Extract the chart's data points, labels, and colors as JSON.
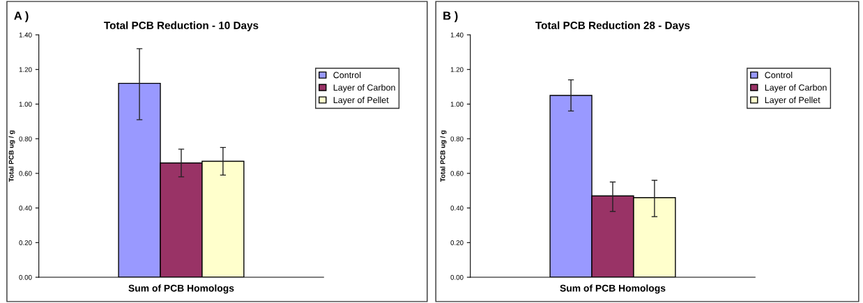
{
  "chart_data": [
    {
      "type": "bar",
      "title": "Total PCB Reduction - 10 Days",
      "xlabel": "Sum of PCB Homologs",
      "ylabel": "Total PCB ug / g",
      "annotations": [
        "A )"
      ],
      "categories": [
        null
      ],
      "series": [
        {
          "name": "Control",
          "color": "#9999ff",
          "values": [
            1.12
          ],
          "errors": [
            [
              0.91,
              1.32
            ]
          ]
        },
        {
          "name": "Layer of Carbon",
          "color": "#993366",
          "values": [
            0.66
          ],
          "errors": [
            [
              0.58,
              0.74
            ]
          ]
        },
        {
          "name": "Layer of Pellet",
          "color": "#ffffcc",
          "values": [
            0.67
          ],
          "errors": [
            [
              0.59,
              0.75
            ]
          ]
        }
      ],
      "ylim": [
        0,
        1.4
      ],
      "yticks": [
        {
          "value": 0,
          "label": "0.00"
        },
        {
          "value": 0.2,
          "label": "0.20"
        },
        {
          "value": 0.4,
          "label": "0.40"
        },
        {
          "value": 0.6,
          "label": "0.60"
        },
        {
          "value": 0.8,
          "label": "0.80"
        },
        {
          "value": 1.0,
          "label": "1.00"
        },
        {
          "value": 1.2,
          "label": "1.20"
        },
        {
          "value": 1.4,
          "label": "1.40"
        }
      ],
      "legend": "top right",
      "grid": false
    },
    {
      "type": "bar",
      "title": "Total PCB Reduction 28 - Days",
      "xlabel": "Sum of PCB Homologs",
      "ylabel": "Total PCB ug / g",
      "annotations": [
        "B )"
      ],
      "categories": [
        null
      ],
      "series": [
        {
          "name": "Control",
          "color": "#9999ff",
          "values": [
            1.05
          ],
          "errors": [
            [
              0.96,
              1.14
            ]
          ]
        },
        {
          "name": "Layer of Carbon",
          "color": "#993366",
          "values": [
            0.47
          ],
          "errors": [
            [
              0.38,
              0.55
            ]
          ]
        },
        {
          "name": "Layer of Pellet",
          "color": "#ffffcc",
          "values": [
            0.46
          ],
          "errors": [
            [
              0.35,
              0.56
            ]
          ]
        }
      ],
      "ylim": [
        0,
        1.4
      ],
      "yticks": [
        {
          "value": 0,
          "label": "0.00"
        },
        {
          "value": 0.2,
          "label": "0.20"
        },
        {
          "value": 0.4,
          "label": "0.40"
        },
        {
          "value": 0.6,
          "label": "0.60"
        },
        {
          "value": 0.8,
          "label": "0.80"
        },
        {
          "value": 1.0,
          "label": "1.00"
        },
        {
          "value": 1.2,
          "label": "1.20"
        },
        {
          "value": 1.4,
          "label": "1.40"
        }
      ],
      "legend": "top right",
      "grid": false
    }
  ]
}
